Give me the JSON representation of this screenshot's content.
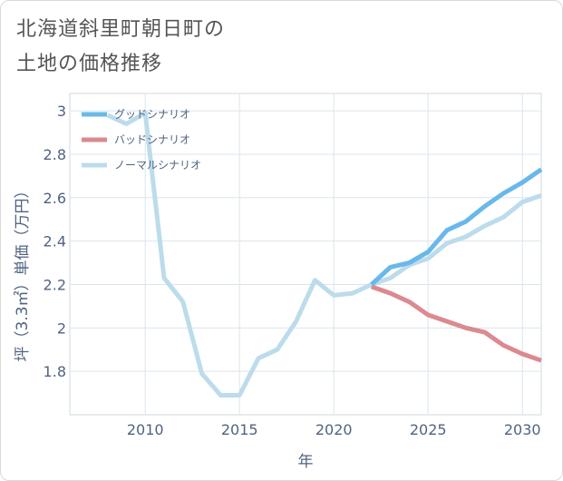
{
  "title_lines": [
    "北海道斜里町朝日町の",
    "土地の価格推移"
  ],
  "chart_data": {
    "type": "line",
    "xlabel": "年",
    "ylabel": "坪（3.3㎡）単価（万円）",
    "xlim": [
      2006,
      2031
    ],
    "ylim": [
      1.6,
      3.08
    ],
    "xticks": [
      2010,
      2015,
      2020,
      2025,
      2030
    ],
    "yticks": [
      1.8,
      2,
      2.2,
      2.4,
      2.6,
      2.8,
      3
    ],
    "ytick_labels": [
      "1.8",
      "2",
      "2.2",
      "2.4",
      "2.6",
      "2.8",
      "3"
    ],
    "grid": true,
    "legend_position": "top-left",
    "series": [
      {
        "name": "グッドシナリオ",
        "color": "#6ab8ea",
        "x": [
          2022,
          2023,
          2024,
          2025,
          2026,
          2027,
          2028,
          2029,
          2030,
          2031
        ],
        "values": [
          2.2,
          2.28,
          2.3,
          2.35,
          2.45,
          2.49,
          2.56,
          2.62,
          2.67,
          2.73
        ]
      },
      {
        "name": "バッドシナリオ",
        "color": "#db8a8f",
        "x": [
          2022,
          2023,
          2024,
          2025,
          2026,
          2027,
          2028,
          2029,
          2030,
          2031
        ],
        "values": [
          2.19,
          2.16,
          2.12,
          2.06,
          2.03,
          2.0,
          1.98,
          1.92,
          1.88,
          1.85
        ]
      },
      {
        "name": "ノーマルシナリオ",
        "color": "#bcdcec",
        "x": [
          2008,
          2009,
          2010,
          2011,
          2012,
          2013,
          2014,
          2015,
          2016,
          2017,
          2018,
          2019,
          2020,
          2021,
          2022,
          2023,
          2024,
          2025,
          2026,
          2027,
          2028,
          2029,
          2030,
          2031
        ],
        "values": [
          2.98,
          2.94,
          2.99,
          2.23,
          2.12,
          1.79,
          1.69,
          1.69,
          1.86,
          1.9,
          2.03,
          2.22,
          2.15,
          2.16,
          2.2,
          2.23,
          2.29,
          2.32,
          2.39,
          2.42,
          2.47,
          2.51,
          2.58,
          2.61
        ]
      }
    ]
  }
}
